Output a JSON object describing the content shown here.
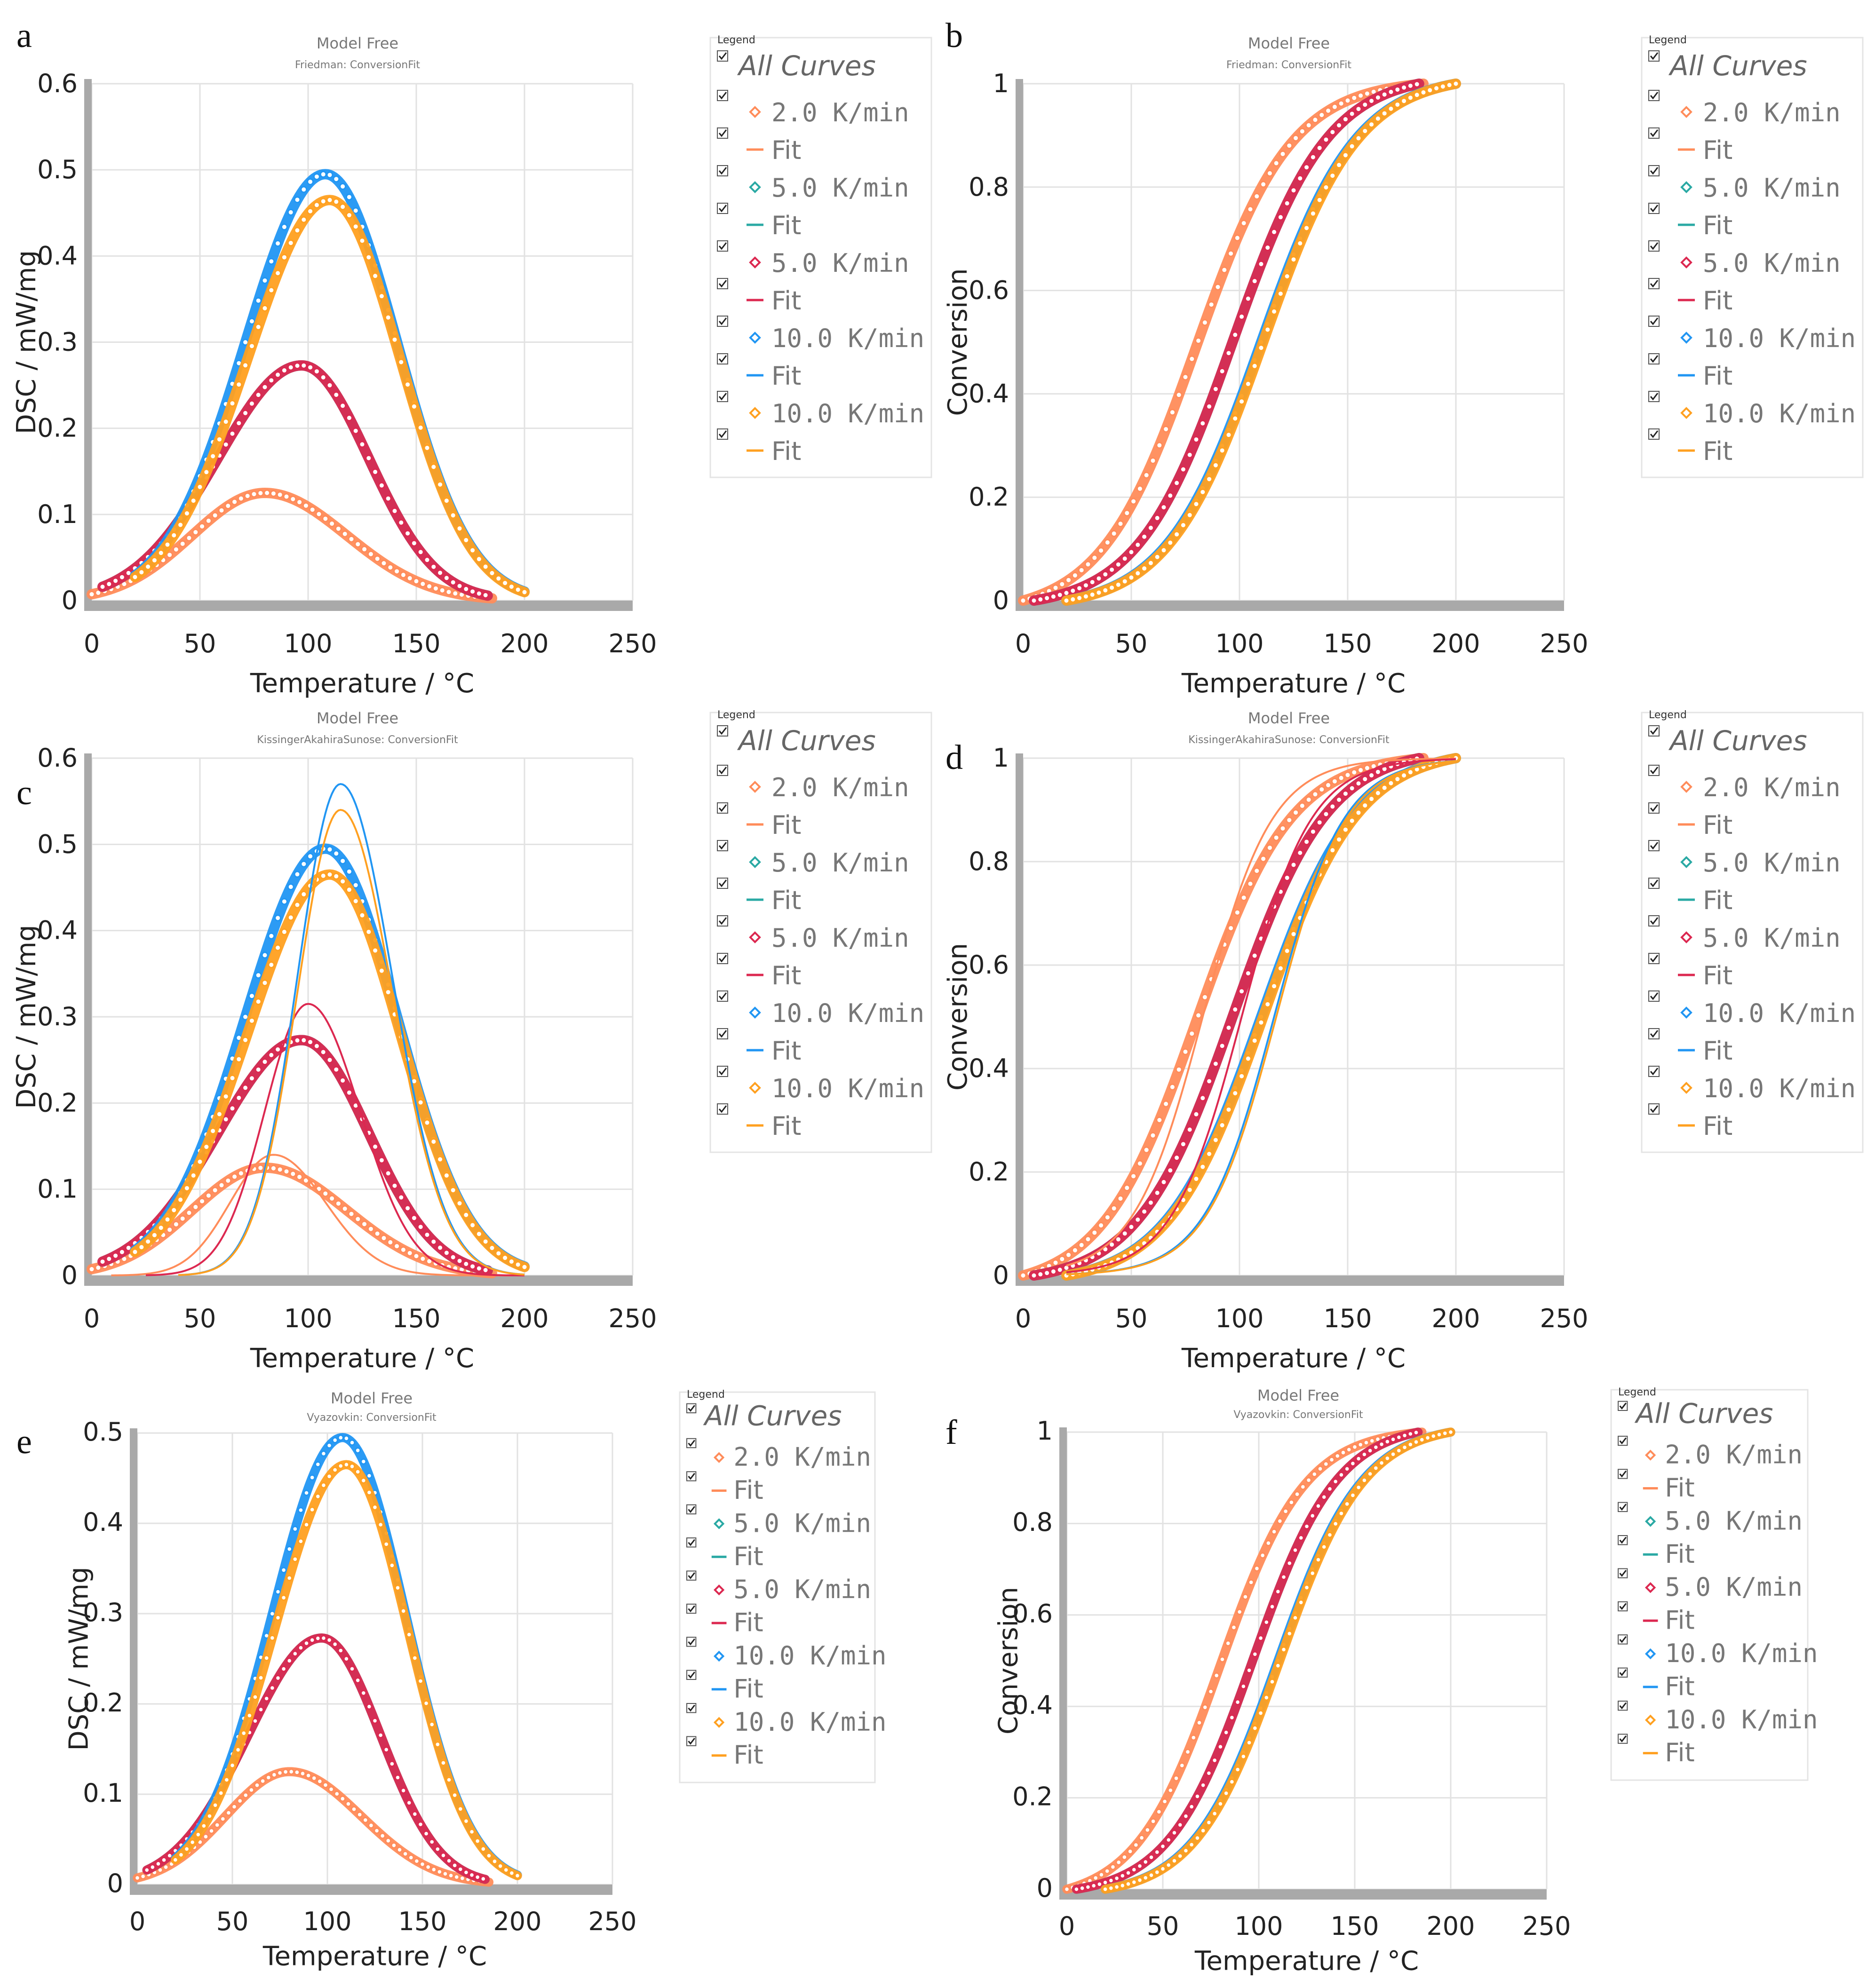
{
  "figure": {
    "panels": [
      {
        "label": "a",
        "title": "Model Free",
        "subtitle": "Friedman: ConversionFit"
      },
      {
        "label": "b",
        "title": "Model Free",
        "subtitle": "Friedman: ConversionFit"
      },
      {
        "label": "c",
        "title": "Model Free",
        "subtitle": "KissingerAkahiraSunose: ConversionFit"
      },
      {
        "label": "d",
        "title": "Model Free",
        "subtitle": "KissingerAkahiraSunose: ConversionFit"
      },
      {
        "label": "e",
        "title": "Model Free",
        "subtitle": "Vyazovkin: ConversionFit"
      },
      {
        "label": "f",
        "title": "Model Free",
        "subtitle": "Vyazovkin: ConversionFit"
      }
    ],
    "legend": {
      "heading": "Legend",
      "all_curves": "All Curves",
      "entries": [
        {
          "label": "2.0 K/min",
          "kind": "marker",
          "color": "#ff8c5a"
        },
        {
          "label": "Fit",
          "kind": "line",
          "color": "#ff8c5a"
        },
        {
          "label": "5.0 K/min",
          "kind": "marker",
          "color": "#2aa9a4"
        },
        {
          "label": "Fit",
          "kind": "line",
          "color": "#2aa9a4"
        },
        {
          "label": "5.0 K/min",
          "kind": "marker",
          "color": "#dc2850"
        },
        {
          "label": "Fit",
          "kind": "line",
          "color": "#dc2850"
        },
        {
          "label": "10.0 K/min",
          "kind": "marker",
          "color": "#2196f3"
        },
        {
          "label": "Fit",
          "kind": "line",
          "color": "#2196f3"
        },
        {
          "label": "10.0 K/min",
          "kind": "marker",
          "color": "#ffa020"
        },
        {
          "label": "Fit",
          "kind": "line",
          "color": "#ffa020"
        }
      ]
    }
  },
  "chart_data": [
    {
      "panel": "a",
      "type": "scatter",
      "title": "Model Free",
      "subtitle": "Friedman: ConversionFit",
      "xlabel": "Temperature / °C",
      "ylabel": "DSC / mW/mg",
      "xlim": [
        0,
        250
      ],
      "ylim": [
        0,
        0.6
      ],
      "xticks": [
        "0",
        "50",
        "100",
        "150",
        "200",
        "250"
      ],
      "yticks": [
        "0",
        "0.1",
        "0.2",
        "0.3",
        "0.4",
        "0.5",
        "0.6"
      ],
      "series": [
        {
          "name": "2.0 K/min",
          "color": "#ff8c5a",
          "kind": "peak",
          "peak_x": 80,
          "peak_y": 0.125,
          "x_start": 0,
          "x_end": 185
        },
        {
          "name": "5.0 K/min",
          "color": "#2aa9a4",
          "kind": "peak",
          "peak_x": 97,
          "peak_y": 0.273,
          "x_start": 5,
          "x_end": 183
        },
        {
          "name": "5.0 K/min",
          "color": "#dc2850",
          "kind": "peak",
          "peak_x": 97,
          "peak_y": 0.273,
          "x_start": 5,
          "x_end": 183
        },
        {
          "name": "10.0 K/min",
          "color": "#2196f3",
          "kind": "peak",
          "peak_x": 108,
          "peak_y": 0.495,
          "x_start": 20,
          "x_end": 200
        },
        {
          "name": "10.0 K/min",
          "color": "#ffa020",
          "kind": "peak",
          "peak_x": 110,
          "peak_y": 0.465,
          "x_start": 20,
          "x_end": 200
        }
      ]
    },
    {
      "panel": "b",
      "type": "scatter",
      "title": "Model Free",
      "subtitle": "Friedman: ConversionFit",
      "xlabel": "Temperature / °C",
      "ylabel": "Conversion",
      "xlim": [
        0,
        250
      ],
      "ylim": [
        0,
        1
      ],
      "xticks": [
        "0",
        "50",
        "100",
        "150",
        "200",
        "250"
      ],
      "yticks": [
        "0",
        "0.2",
        "0.4",
        "0.6",
        "0.8",
        "1"
      ],
      "series": [
        {
          "name": "2.0 K/min",
          "color": "#ff8c5a",
          "kind": "sigmoid",
          "mid_x": 80,
          "x_start": 0,
          "x_end": 185
        },
        {
          "name": "5.0 K/min",
          "color": "#2aa9a4",
          "kind": "sigmoid",
          "mid_x": 97,
          "x_start": 5,
          "x_end": 183
        },
        {
          "name": "5.0 K/min",
          "color": "#dc2850",
          "kind": "sigmoid",
          "mid_x": 97,
          "x_start": 5,
          "x_end": 183
        },
        {
          "name": "10.0 K/min",
          "color": "#2196f3",
          "kind": "sigmoid",
          "mid_x": 110,
          "x_start": 20,
          "x_end": 200
        },
        {
          "name": "10.0 K/min",
          "color": "#ffa020",
          "kind": "sigmoid",
          "mid_x": 111,
          "x_start": 20,
          "x_end": 200
        }
      ]
    },
    {
      "panel": "c",
      "type": "scatter",
      "title": "Model Free",
      "subtitle": "KissingerAkahiraSunose: ConversionFit",
      "xlabel": "Temperature / °C",
      "ylabel": "DSC / mW/mg",
      "xlim": [
        0,
        250
      ],
      "ylim": [
        0,
        0.6
      ],
      "xticks": [
        "0",
        "50",
        "100",
        "150",
        "200",
        "250"
      ],
      "yticks": [
        "0",
        "0.1",
        "0.2",
        "0.3",
        "0.4",
        "0.5",
        "0.6"
      ],
      "series": [
        {
          "name": "2.0 K/min",
          "color": "#ff8c5a",
          "kind": "peak",
          "peak_x": 80,
          "peak_y": 0.125,
          "x_start": 0,
          "x_end": 185
        },
        {
          "name": "5.0 K/min",
          "color": "#2aa9a4",
          "kind": "peak",
          "peak_x": 97,
          "peak_y": 0.273,
          "x_start": 5,
          "x_end": 183
        },
        {
          "name": "5.0 K/min",
          "color": "#dc2850",
          "kind": "peak",
          "peak_x": 97,
          "peak_y": 0.273,
          "x_start": 5,
          "x_end": 183
        },
        {
          "name": "10.0 K/min",
          "color": "#2196f3",
          "kind": "peak",
          "peak_x": 108,
          "peak_y": 0.495,
          "x_start": 20,
          "x_end": 200
        },
        {
          "name": "10.0 K/min",
          "color": "#ffa020",
          "kind": "peak",
          "peak_x": 110,
          "peak_y": 0.465,
          "x_start": 20,
          "x_end": 200
        }
      ],
      "fits": [
        {
          "name": "Fit",
          "color": "#ff8c5a",
          "peak_x": 84,
          "peak_y": 0.14
        },
        {
          "name": "Fit",
          "color": "#dc2850",
          "peak_x": 100,
          "peak_y": 0.315
        },
        {
          "name": "Fit",
          "color": "#2196f3",
          "peak_x": 115,
          "peak_y": 0.57
        },
        {
          "name": "Fit",
          "color": "#ffa020",
          "peak_x": 115,
          "peak_y": 0.54
        }
      ]
    },
    {
      "panel": "d",
      "type": "scatter",
      "title": "Model Free",
      "subtitle": "KissingerAkahiraSunose: ConversionFit",
      "xlabel": "Temperature / °C",
      "ylabel": "Conversion",
      "xlim": [
        0,
        250
      ],
      "ylim": [
        0,
        1
      ],
      "xticks": [
        "0",
        "50",
        "100",
        "150",
        "200",
        "250"
      ],
      "yticks": [
        "0",
        "0.2",
        "0.4",
        "0.6",
        "0.8",
        "1"
      ],
      "series": [
        {
          "name": "2.0 K/min",
          "color": "#ff8c5a",
          "kind": "sigmoid",
          "mid_x": 80,
          "x_start": 0,
          "x_end": 185
        },
        {
          "name": "5.0 K/min",
          "color": "#2aa9a4",
          "kind": "sigmoid",
          "mid_x": 97,
          "x_start": 5,
          "x_end": 183
        },
        {
          "name": "5.0 K/min",
          "color": "#dc2850",
          "kind": "sigmoid",
          "mid_x": 97,
          "x_start": 5,
          "x_end": 183
        },
        {
          "name": "10.0 K/min",
          "color": "#2196f3",
          "kind": "sigmoid",
          "mid_x": 110,
          "x_start": 20,
          "x_end": 200
        },
        {
          "name": "10.0 K/min",
          "color": "#ffa020",
          "kind": "sigmoid",
          "mid_x": 111,
          "x_start": 20,
          "x_end": 200
        }
      ],
      "fits": [
        {
          "name": "Fit",
          "color": "#ff8c5a",
          "mid_x": 83
        },
        {
          "name": "Fit",
          "color": "#dc2850",
          "mid_x": 101
        },
        {
          "name": "Fit",
          "color": "#2196f3",
          "mid_x": 116
        },
        {
          "name": "Fit",
          "color": "#ffa020",
          "mid_x": 117
        }
      ]
    },
    {
      "panel": "e",
      "type": "scatter",
      "title": "Model Free",
      "subtitle": "Vyazovkin: ConversionFit",
      "xlabel": "Temperature / °C",
      "ylabel": "DSC / mW/mg",
      "xlim": [
        0,
        250
      ],
      "ylim": [
        0,
        0.5
      ],
      "xticks": [
        "0",
        "50",
        "100",
        "150",
        "200",
        "250"
      ],
      "yticks": [
        "0",
        "0.1",
        "0.2",
        "0.3",
        "0.4",
        "0.5"
      ],
      "series": [
        {
          "name": "2.0 K/min",
          "color": "#ff8c5a",
          "kind": "peak",
          "peak_x": 80,
          "peak_y": 0.125,
          "x_start": 0,
          "x_end": 185
        },
        {
          "name": "5.0 K/min",
          "color": "#2aa9a4",
          "kind": "peak",
          "peak_x": 97,
          "peak_y": 0.273,
          "x_start": 5,
          "x_end": 183
        },
        {
          "name": "5.0 K/min",
          "color": "#dc2850",
          "kind": "peak",
          "peak_x": 97,
          "peak_y": 0.273,
          "x_start": 5,
          "x_end": 183
        },
        {
          "name": "10.0 K/min",
          "color": "#2196f3",
          "kind": "peak",
          "peak_x": 108,
          "peak_y": 0.495,
          "x_start": 20,
          "x_end": 200
        },
        {
          "name": "10.0 K/min",
          "color": "#ffa020",
          "kind": "peak",
          "peak_x": 110,
          "peak_y": 0.465,
          "x_start": 20,
          "x_end": 200
        }
      ]
    },
    {
      "panel": "f",
      "type": "scatter",
      "title": "Model Free",
      "subtitle": "Vyazovkin: ConversionFit",
      "xlabel": "Temperature / °C",
      "ylabel": "Conversion",
      "xlim": [
        0,
        250
      ],
      "ylim": [
        0,
        1
      ],
      "xticks": [
        "0",
        "50",
        "100",
        "150",
        "200",
        "250"
      ],
      "yticks": [
        "0",
        "0.2",
        "0.4",
        "0.6",
        "0.8",
        "1"
      ],
      "series": [
        {
          "name": "2.0 K/min",
          "color": "#ff8c5a",
          "kind": "sigmoid",
          "mid_x": 80,
          "x_start": 0,
          "x_end": 185
        },
        {
          "name": "5.0 K/min",
          "color": "#2aa9a4",
          "kind": "sigmoid",
          "mid_x": 97,
          "x_start": 5,
          "x_end": 183
        },
        {
          "name": "5.0 K/min",
          "color": "#dc2850",
          "kind": "sigmoid",
          "mid_x": 97,
          "x_start": 5,
          "x_end": 183
        },
        {
          "name": "10.0 K/min",
          "color": "#2196f3",
          "kind": "sigmoid",
          "mid_x": 110,
          "x_start": 20,
          "x_end": 200
        },
        {
          "name": "10.0 K/min",
          "color": "#ffa020",
          "kind": "sigmoid",
          "mid_x": 111,
          "x_start": 20,
          "x_end": 200
        }
      ]
    }
  ]
}
